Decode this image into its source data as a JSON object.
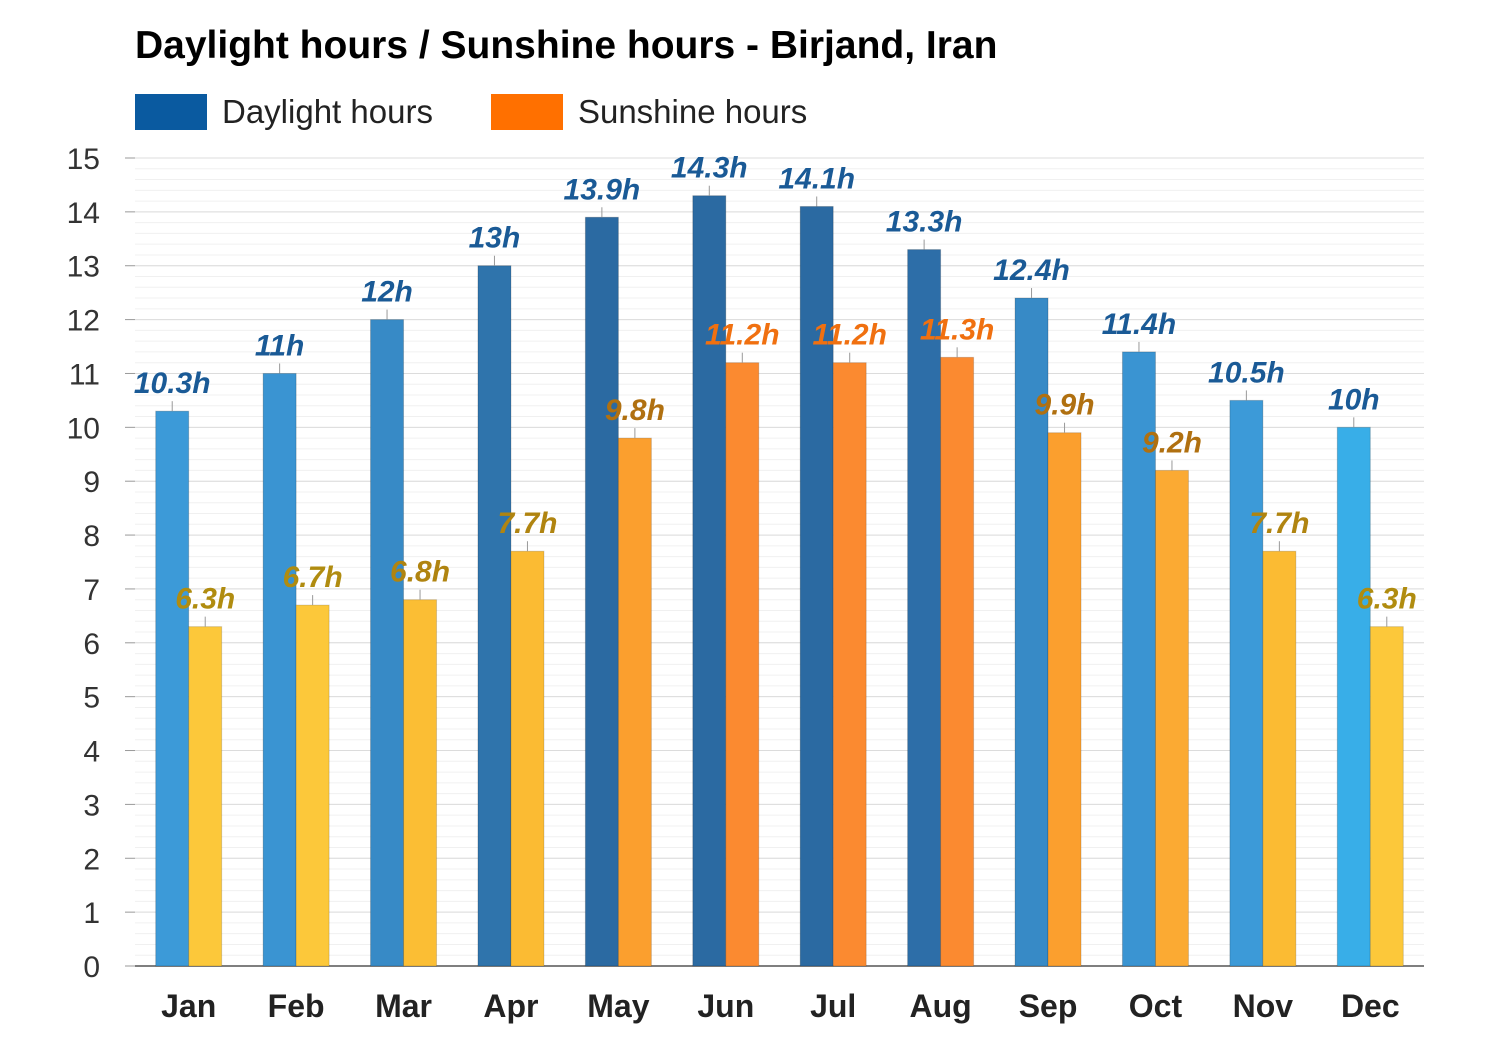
{
  "chart_data": {
    "type": "bar",
    "title": "Daylight hours / Sunshine hours - Birjand, Iran",
    "xlabel": "",
    "ylabel": "",
    "ylim": [
      0,
      15
    ],
    "yticks": [
      0,
      1,
      2,
      3,
      4,
      5,
      6,
      7,
      8,
      9,
      10,
      11,
      12,
      13,
      14,
      15
    ],
    "grid": true,
    "legend_position": "top-left",
    "categories": [
      "Jan",
      "Feb",
      "Mar",
      "Apr",
      "May",
      "Jun",
      "Jul",
      "Aug",
      "Sep",
      "Oct",
      "Nov",
      "Dec"
    ],
    "series": [
      {
        "name": "Daylight hours",
        "legend_color": "#0a5aa0",
        "values": [
          10.3,
          11,
          12,
          13,
          13.9,
          14.3,
          14.1,
          13.3,
          12.4,
          11.4,
          10.5,
          10
        ],
        "labels": [
          "10.3h",
          "11h",
          "12h",
          "13h",
          "13.9h",
          "14.3h",
          "14.1h",
          "13.3h",
          "12.4h",
          "11.4h",
          "10.5h",
          "10h"
        ],
        "bar_colors": [
          "#3c9ad8",
          "#3a94d2",
          "#378ac6",
          "#2f74ac",
          "#2b6aa2",
          "#2b6aa2",
          "#2b6aa2",
          "#2d6ea8",
          "#378ac6",
          "#3a94d2",
          "#3c9ad8",
          "#38aee8"
        ],
        "label_color": "#1a5a96"
      },
      {
        "name": "Sunshine hours",
        "legend_color": "#ff7000",
        "values": [
          6.3,
          6.7,
          6.8,
          7.7,
          9.8,
          11.2,
          11.2,
          11.3,
          9.9,
          9.2,
          7.7,
          6.3
        ],
        "labels": [
          "6.3h",
          "6.7h",
          "6.8h",
          "7.7h",
          "9.8h",
          "11.2h",
          "11.2h",
          "11.3h",
          "9.9h",
          "9.2h",
          "7.7h",
          "6.3h"
        ],
        "bar_colors": [
          "#fcc83a",
          "#fcc83a",
          "#fbbe34",
          "#fbbb33",
          "#fb9f2e",
          "#fb8a30",
          "#fb8a30",
          "#fb8a30",
          "#fb9f2e",
          "#fbaa33",
          "#fbbb33",
          "#fcc83a"
        ],
        "label_colors": [
          "#b08c10",
          "#b08c10",
          "#b08410",
          "#b08410",
          "#b07010",
          "#f07010",
          "#f07010",
          "#f07010",
          "#b07010",
          "#b07010",
          "#b08410",
          "#b08c10"
        ]
      }
    ]
  }
}
